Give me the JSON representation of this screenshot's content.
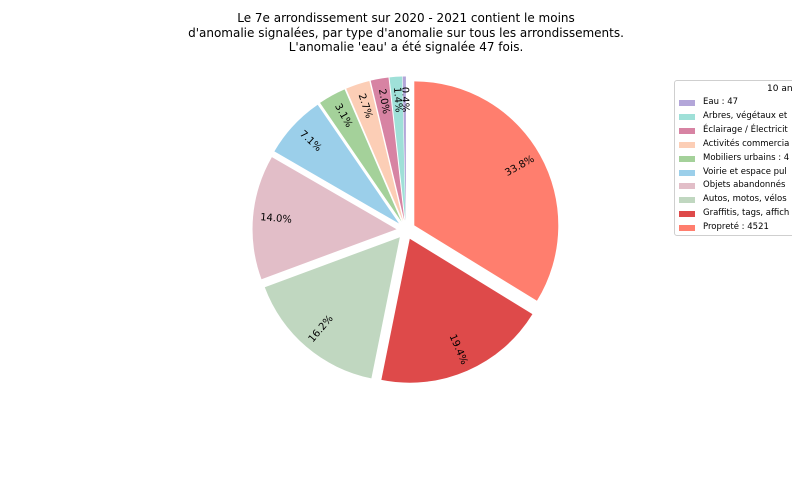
{
  "title_lines": [
    "Le 7e arrondissement sur 2020 - 2021 contient le moins",
    "d'anomalie signalées, par type d'anomalie sur tous les arrondissements.",
    "L'anomalie 'eau' a été signalée 47 fois."
  ],
  "chart_data": {
    "type": "pie",
    "title": "Le 7e arrondissement sur 2020 - 2021 contient le moins d'anomalie signalées, par type d'anomalie sur tous les arrondissements. L'anomalie 'eau' a été signalée 47 fois.",
    "legend_title": "10 an",
    "legend_placement": "right",
    "start_angle_deg": 90,
    "direction": "counterclockwise",
    "explode_all": true,
    "slices": [
      {
        "legend": "Eau : 47",
        "value": 47,
        "pct_label": "0.4%",
        "color": "#b3a6d9"
      },
      {
        "legend": "Arbres, végétaux et",
        "value": 188,
        "pct_label": "1.4%",
        "color": "#9fe0d8"
      },
      {
        "legend": "Éclairage / Électricit",
        "value": 268,
        "pct_label": "2.0%",
        "color": "#d783a3"
      },
      {
        "legend": "Activités commercia",
        "value": 361,
        "pct_label": "2.7%",
        "color": "#fcceb6"
      },
      {
        "legend": "Mobiliers urbains : 4",
        "value": 415,
        "pct_label": "3.1%",
        "color": "#a4d19a"
      },
      {
        "legend": "Voirie et espace pul",
        "value": 950,
        "pct_label": "7.1%",
        "color": "#9bcfea"
      },
      {
        "legend": "Objets abandonnés",
        "value": 1873,
        "pct_label": "14.0%",
        "color": "#e2bec8"
      },
      {
        "legend": "Autos, motos, vélos",
        "value": 2167,
        "pct_label": "16.2%",
        "color": "#c0d7c0"
      },
      {
        "legend": "Graffitis, tags, affich",
        "value": 2595,
        "pct_label": "19.4%",
        "color": "#de4a4a"
      },
      {
        "legend": "Propreté : 4521",
        "value": 4521,
        "pct_label": "33.8%",
        "color": "#ff7e6e"
      }
    ]
  }
}
